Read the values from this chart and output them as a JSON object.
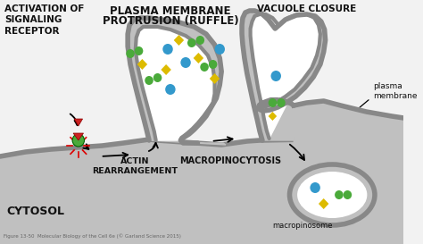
{
  "bg_color": "#f2f2f2",
  "cell_fill": "#c0c0c0",
  "cell_border": "#888888",
  "white": "#ffffff",
  "title_line1": "PLASMA MEMBRANE",
  "title_line2": "PROTRUSION (RUFFLE)",
  "label_vacuole": "VACUOLE CLOSURE",
  "label_activation": "ACTIVATION OF\nSIGNALING\nRECEPTOR",
  "label_actin": "ACTIN\nREARRANGEMENT",
  "label_macro_label": "MACROPINOCYTOSIS",
  "label_cytosol": "CYTOSOL",
  "label_plasma": "plasma\nmembrane",
  "label_macropinosome": "macropinosome",
  "caption": "Figure 13-50  Molecular Biology of the Cell 6e (© Garland Science 2015)",
  "green_color": "#4aaa3a",
  "blue_color": "#3399cc",
  "yellow_color": "#ddbb00",
  "red_color": "#cc2222",
  "dark_gray": "#777777",
  "text_color": "#111111"
}
